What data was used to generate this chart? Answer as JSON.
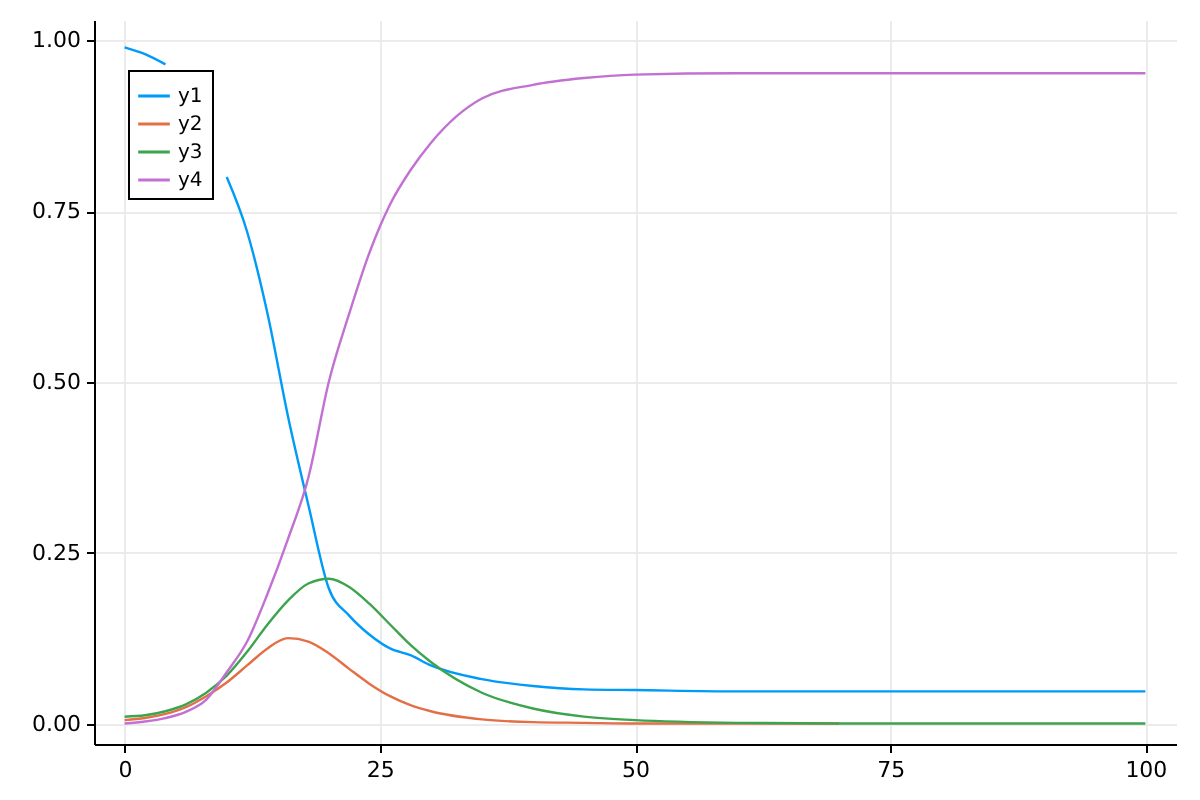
{
  "chart_data": {
    "type": "line",
    "x": [
      0,
      2,
      4,
      6,
      8,
      10,
      12,
      14,
      16,
      18,
      20,
      22,
      24,
      26,
      28,
      30,
      35,
      40,
      45,
      50,
      60,
      70,
      80,
      90,
      100
    ],
    "series": [
      {
        "name": "y1",
        "color": "#009af9",
        "values": [
          0.99,
          0.98,
          0.965,
          null,
          null,
          0.8,
          0.72,
          0.6,
          0.45,
          0.32,
          0.198,
          0.158,
          0.13,
          0.11,
          0.1,
          0.085,
          0.065,
          0.055,
          0.05,
          0.049,
          0.047,
          0.047,
          0.047,
          0.047,
          0.047
        ]
      },
      {
        "name": "y2",
        "color": "#e26f46",
        "values": [
          0.005,
          0.008,
          0.014,
          0.024,
          0.04,
          0.06,
          0.085,
          0.11,
          0.125,
          0.12,
          0.103,
          0.08,
          0.058,
          0.04,
          0.027,
          0.018,
          0.006,
          0.002,
          0.001,
          0,
          0,
          0,
          null,
          null,
          null
        ]
      },
      {
        "name": "y3",
        "color": "#3da44d",
        "values": [
          0.01,
          0.012,
          0.018,
          0.028,
          0.045,
          0.07,
          0.105,
          0.145,
          0.18,
          0.205,
          0.212,
          0.2,
          0.175,
          0.145,
          0.115,
          0.09,
          0.045,
          0.022,
          0.01,
          0.005,
          0.001,
          0,
          0,
          0,
          0
        ]
      },
      {
        "name": "y4",
        "color": "#c271d2",
        "values": [
          0,
          0.003,
          0.008,
          0.017,
          0.035,
          0.075,
          0.12,
          0.19,
          0.27,
          0.36,
          0.5,
          0.6,
          0.69,
          0.76,
          0.81,
          0.85,
          0.915,
          0.935,
          0.945,
          0.95,
          0.952,
          0.952,
          0.952,
          0.952,
          0.952
        ]
      }
    ],
    "xlim": [
      -3,
      103
    ],
    "xticks": [
      0,
      25,
      50,
      75,
      100
    ],
    "ylim": [
      -0.03,
      1.03
    ],
    "yticks": [
      {
        "value": 0,
        "label": "0.00"
      },
      {
        "value": 0.25,
        "label": "0.25"
      },
      {
        "value": 0.5,
        "label": "0.50"
      },
      {
        "value": 0.75,
        "label": "0.75"
      },
      {
        "value": 1,
        "label": "1.00"
      }
    ],
    "grid": true,
    "legend": "top left"
  }
}
